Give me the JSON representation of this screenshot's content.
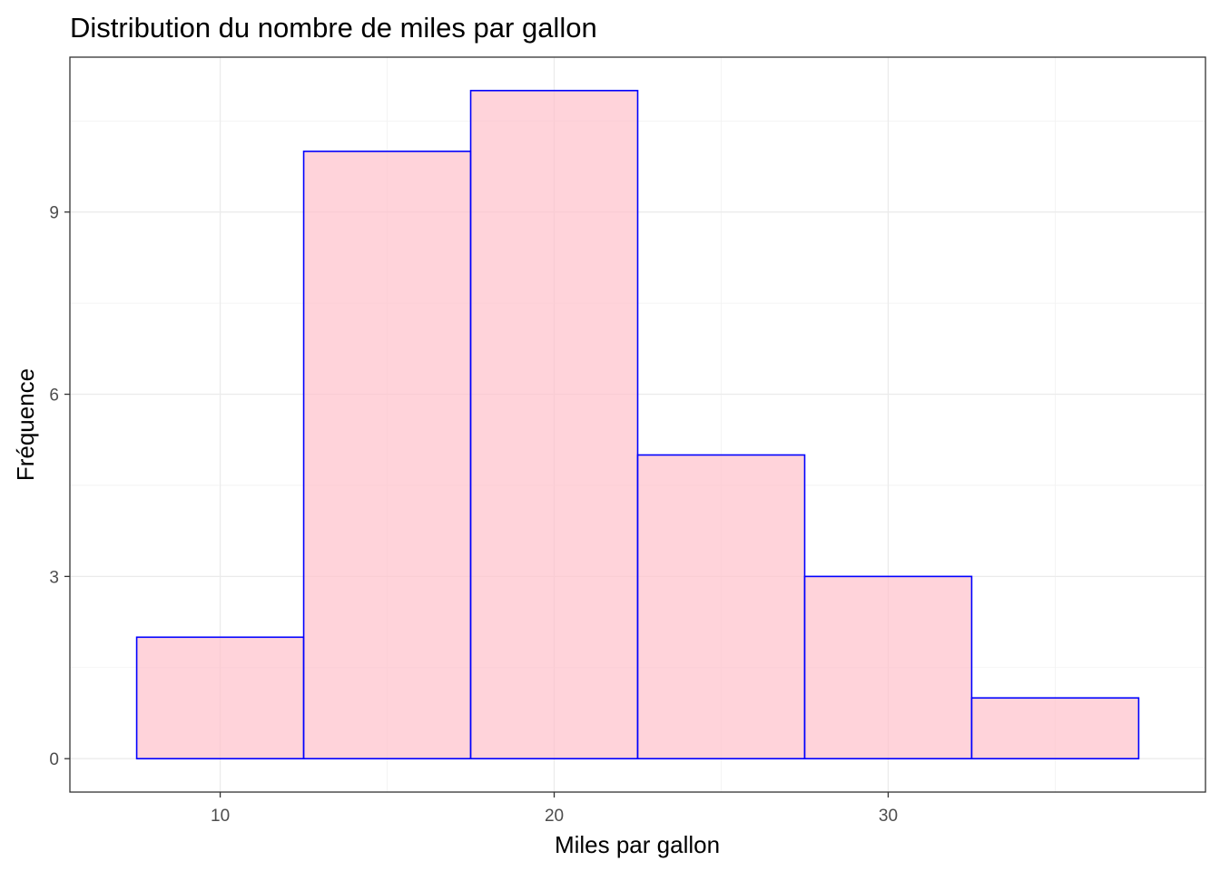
{
  "chart_data": {
    "type": "bar",
    "title": "Distribution du nombre de miles par gallon",
    "xlabel": "Miles par gallon",
    "ylabel": "Fréquence",
    "bins": [
      {
        "x0": 7.5,
        "x1": 12.5,
        "count": 2
      },
      {
        "x0": 12.5,
        "x1": 17.5,
        "count": 10
      },
      {
        "x0": 17.5,
        "x1": 22.5,
        "count": 11
      },
      {
        "x0": 22.5,
        "x1": 27.5,
        "count": 5
      },
      {
        "x0": 27.5,
        "x1": 32.5,
        "count": 3
      },
      {
        "x0": 32.5,
        "x1": 37.5,
        "count": 1
      }
    ],
    "xlim": [
      5.5,
      39.5
    ],
    "ylim": [
      -0.55,
      11.55
    ],
    "xticks": [
      10,
      20,
      30
    ],
    "yticks": [
      0,
      3,
      6,
      9
    ],
    "xminor": [
      15,
      25,
      35
    ],
    "yminor": [
      1.5,
      4.5,
      7.5,
      10.5
    ],
    "grid": true,
    "fill_color": "#ffc0cb",
    "fill_opacity": 0.7,
    "outline_color": "#0000ff"
  }
}
